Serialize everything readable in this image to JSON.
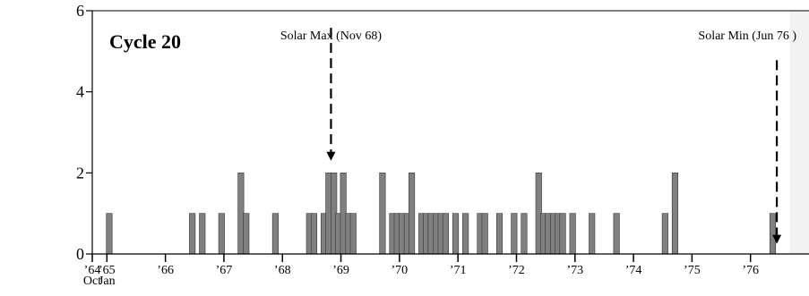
{
  "chart_data": {
    "type": "bar",
    "title": "Cycle 20",
    "xlabel": "",
    "ylabel": "",
    "ylim": [
      0,
      6
    ],
    "yticks": [
      0,
      2,
      4,
      6
    ],
    "xlim": [
      1964.75,
      1977.0
    ],
    "grid": false,
    "bar_color": "#808080",
    "shaded_region_color": "#f2f2f2",
    "xticks": [
      {
        "x": 1964.75,
        "label": "’64",
        "sublabel": "Oct"
      },
      {
        "x": 1965.0,
        "label": "’65",
        "sublabel": "Jan"
      },
      {
        "x": 1966.0,
        "label": "’66",
        "sublabel": ""
      },
      {
        "x": 1967.0,
        "label": "’67",
        "sublabel": ""
      },
      {
        "x": 1968.0,
        "label": "’68",
        "sublabel": ""
      },
      {
        "x": 1969.0,
        "label": "’69",
        "sublabel": ""
      },
      {
        "x": 1970.0,
        "label": "’70",
        "sublabel": ""
      },
      {
        "x": 1971.0,
        "label": "’71",
        "sublabel": ""
      },
      {
        "x": 1972.0,
        "label": "’72",
        "sublabel": ""
      },
      {
        "x": 1973.0,
        "label": "’73",
        "sublabel": ""
      },
      {
        "x": 1974.0,
        "label": "’74",
        "sublabel": ""
      },
      {
        "x": 1975.0,
        "label": "’75",
        "sublabel": ""
      },
      {
        "x": 1976.0,
        "label": "’76",
        "sublabel": ""
      }
    ],
    "x": [
      1965.04,
      1966.46,
      1966.63,
      1966.96,
      1967.29,
      1967.38,
      1967.88,
      1968.46,
      1968.54,
      1968.71,
      1968.79,
      1968.88,
      1968.96,
      1969.04,
      1969.13,
      1969.21,
      1969.71,
      1969.88,
      1969.96,
      1970.04,
      1970.13,
      1970.21,
      1970.38,
      1970.46,
      1970.54,
      1970.63,
      1970.71,
      1970.79,
      1970.96,
      1971.13,
      1971.38,
      1971.46,
      1971.71,
      1971.96,
      1972.13,
      1972.38,
      1972.46,
      1972.54,
      1972.63,
      1972.71,
      1972.79,
      1972.96,
      1973.29,
      1973.71,
      1974.54,
      1974.71,
      1976.38
    ],
    "values": [
      1,
      1,
      1,
      1,
      2,
      1,
      1,
      1,
      1,
      1,
      2,
      2,
      1,
      2,
      1,
      1,
      2,
      1,
      1,
      1,
      1,
      2,
      1,
      1,
      1,
      1,
      1,
      1,
      1,
      1,
      1,
      1,
      1,
      1,
      1,
      2,
      1,
      1,
      1,
      1,
      1,
      1,
      1,
      1,
      1,
      2,
      1
    ],
    "annotations": [
      {
        "name": "solar-max",
        "text": "Solar Max (Nov 68)",
        "x": 1968.83,
        "arrow_top": 5.8,
        "arrow_bottom": 2.3
      },
      {
        "name": "solar-min",
        "text": "Solar Min (Jun 76 )",
        "x": 1976.45,
        "arrow_top": 5.0,
        "arrow_bottom": 0.25
      }
    ],
    "shaded_region": {
      "x_start": 1976.67,
      "x_end": 1977.0
    }
  }
}
